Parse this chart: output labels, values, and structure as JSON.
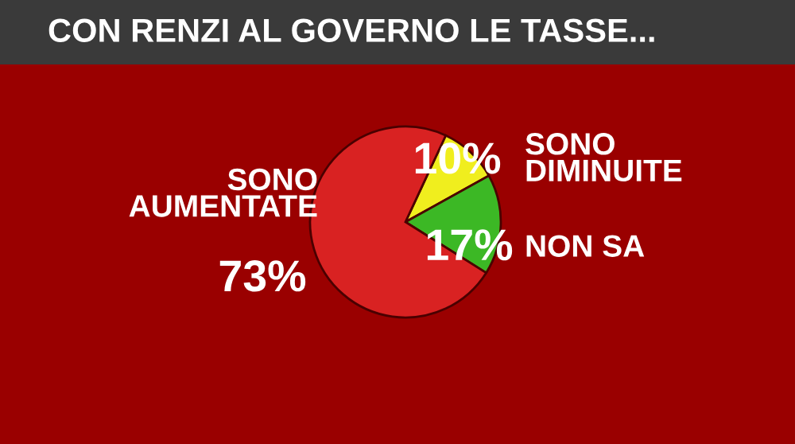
{
  "chart_data": {
    "type": "pie",
    "title": "CON RENZI AL GOVERNO LE TASSE...",
    "categories": [
      "SONO AUMENTATE",
      "SONO DIMINUITE",
      "NON SA"
    ],
    "values": [
      73,
      10,
      17
    ],
    "colors": [
      "#d92222",
      "#f0ee1e",
      "#3cb825"
    ],
    "value_labels": [
      "73%",
      "10%",
      "17%"
    ]
  }
}
